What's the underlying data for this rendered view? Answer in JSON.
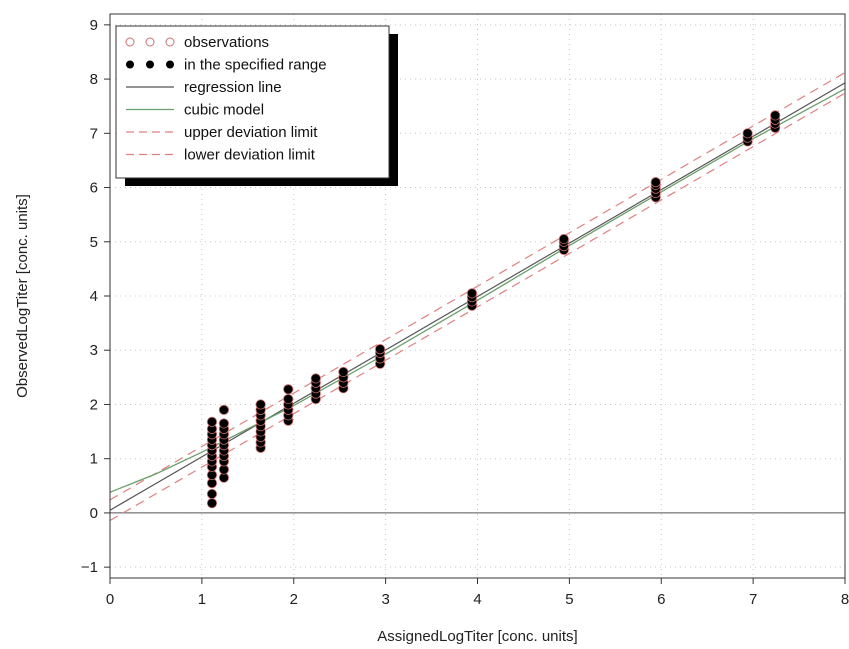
{
  "chart_data": {
    "type": "scatter",
    "xlabel": "AssignedLogTiter  [conc. units]",
    "ylabel": "ObservedLogTiter  [conc. units]",
    "xlim": [
      0,
      8
    ],
    "ylim": [
      -1.2,
      9.2
    ],
    "xticks": [
      "0",
      "1",
      "2",
      "3",
      "4",
      "5",
      "6",
      "7",
      "8"
    ],
    "yticks": [
      "−1",
      "0",
      "1",
      "2",
      "3",
      "4",
      "5",
      "6",
      "7",
      "8",
      "9"
    ],
    "grid": true,
    "legend_position": "top-left",
    "legend": [
      {
        "label": "observations",
        "style": "open-circle",
        "color": "#d07070"
      },
      {
        "label": "in the specified range",
        "style": "filled-circle",
        "color": "#000000"
      },
      {
        "label": "regression line",
        "style": "line",
        "color": "#555555"
      },
      {
        "label": "cubic model",
        "style": "line",
        "color": "#6aa06a"
      },
      {
        "label": "upper deviation limit",
        "style": "dashed",
        "color": "#e08080"
      },
      {
        "label": "lower deviation limit",
        "style": "dashed",
        "color": "#e08080"
      }
    ],
    "reference_line_y": 0,
    "regression_line": {
      "intercept": 0.05,
      "slope": 0.985
    },
    "upper_deviation_limit": {
      "intercept": 0.24,
      "slope": 0.985
    },
    "lower_deviation_limit": {
      "intercept": -0.14,
      "slope": 0.985
    },
    "cubic_model": {
      "x": [
        0,
        0.5,
        1,
        1.5,
        2,
        3,
        4,
        5,
        6,
        7,
        8
      ],
      "y": [
        0.38,
        0.72,
        1.12,
        1.55,
        1.98,
        2.93,
        3.92,
        4.93,
        5.92,
        6.9,
        7.82
      ]
    },
    "series": [
      {
        "name": "in the specified range",
        "points": [
          [
            1.11,
            0.18
          ],
          [
            1.11,
            0.35
          ],
          [
            1.11,
            0.55
          ],
          [
            1.11,
            0.7
          ],
          [
            1.11,
            0.85
          ],
          [
            1.11,
            0.95
          ],
          [
            1.11,
            1.05
          ],
          [
            1.11,
            1.15
          ],
          [
            1.11,
            1.25
          ],
          [
            1.11,
            1.35
          ],
          [
            1.11,
            1.45
          ],
          [
            1.11,
            1.55
          ],
          [
            1.11,
            1.68
          ],
          [
            1.24,
            0.65
          ],
          [
            1.24,
            0.8
          ],
          [
            1.24,
            0.95
          ],
          [
            1.24,
            1.05
          ],
          [
            1.24,
            1.15
          ],
          [
            1.24,
            1.25
          ],
          [
            1.24,
            1.35
          ],
          [
            1.24,
            1.45
          ],
          [
            1.24,
            1.55
          ],
          [
            1.24,
            1.65
          ],
          [
            1.24,
            1.9
          ],
          [
            1.64,
            1.2
          ],
          [
            1.64,
            1.3
          ],
          [
            1.64,
            1.4
          ],
          [
            1.64,
            1.5
          ],
          [
            1.64,
            1.6
          ],
          [
            1.64,
            1.7
          ],
          [
            1.64,
            1.8
          ],
          [
            1.64,
            1.9
          ],
          [
            1.64,
            2.0
          ],
          [
            1.94,
            1.7
          ],
          [
            1.94,
            1.8
          ],
          [
            1.94,
            1.9
          ],
          [
            1.94,
            2.0
          ],
          [
            1.94,
            2.1
          ],
          [
            1.94,
            2.28
          ],
          [
            2.24,
            2.1
          ],
          [
            2.24,
            2.2
          ],
          [
            2.24,
            2.3
          ],
          [
            2.24,
            2.4
          ],
          [
            2.24,
            2.48
          ],
          [
            2.54,
            2.3
          ],
          [
            2.54,
            2.4
          ],
          [
            2.54,
            2.5
          ],
          [
            2.54,
            2.6
          ],
          [
            2.94,
            2.75
          ],
          [
            2.94,
            2.85
          ],
          [
            2.94,
            2.95
          ],
          [
            2.94,
            3.02
          ],
          [
            3.94,
            3.82
          ],
          [
            3.94,
            3.9
          ],
          [
            3.94,
            3.98
          ],
          [
            3.94,
            4.05
          ],
          [
            4.94,
            4.85
          ],
          [
            4.94,
            4.92
          ],
          [
            4.94,
            5.0
          ],
          [
            4.94,
            5.05
          ],
          [
            5.94,
            5.82
          ],
          [
            5.94,
            5.9
          ],
          [
            5.94,
            5.98
          ],
          [
            5.94,
            6.05
          ],
          [
            5.94,
            6.1
          ],
          [
            6.94,
            6.85
          ],
          [
            6.94,
            6.92
          ],
          [
            6.94,
            7.0
          ],
          [
            7.24,
            7.1
          ],
          [
            7.24,
            7.18
          ],
          [
            7.24,
            7.25
          ],
          [
            7.24,
            7.33
          ]
        ]
      }
    ]
  }
}
